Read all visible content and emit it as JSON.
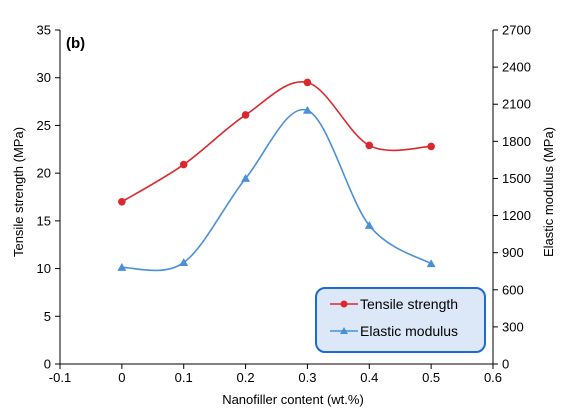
{
  "chart_data": {
    "type": "line",
    "panel_label": "(b)",
    "xlabel": "Nanofiller content (wt.%)",
    "ylabel": "Tensile strength (MPa)",
    "y2label": "Elastic modulus (MPa)",
    "xlim": [
      -0.1,
      0.6
    ],
    "ylim": [
      0,
      35
    ],
    "y2lim": [
      0,
      2700
    ],
    "x_ticks": [
      "-0.1",
      "0",
      "0.1",
      "0.2",
      "0.3",
      "0.4",
      "0.5",
      "0.6"
    ],
    "y_ticks": [
      "0",
      "5",
      "10",
      "15",
      "20",
      "25",
      "30",
      "35"
    ],
    "y2_ticks": [
      "0",
      "300",
      "600",
      "900",
      "1200",
      "1500",
      "1800",
      "2100",
      "2400",
      "2700"
    ],
    "x": [
      0,
      0.1,
      0.2,
      0.3,
      0.4,
      0.5
    ],
    "series": [
      {
        "name": "Tensile strength",
        "axis": "left",
        "marker": "circle",
        "color": "#d9292e",
        "values": [
          17.0,
          20.9,
          26.1,
          29.5,
          22.9,
          22.8
        ]
      },
      {
        "name": "Elastic modulus",
        "axis": "right",
        "marker": "triangle",
        "color": "#4a90d9",
        "values": [
          780,
          820,
          1500,
          2050,
          1120,
          810
        ]
      }
    ],
    "grid": false,
    "legend_position": "bottom-right",
    "legend_style": {
      "fill": "#dce8f8",
      "border": "#1d6bd1"
    }
  }
}
